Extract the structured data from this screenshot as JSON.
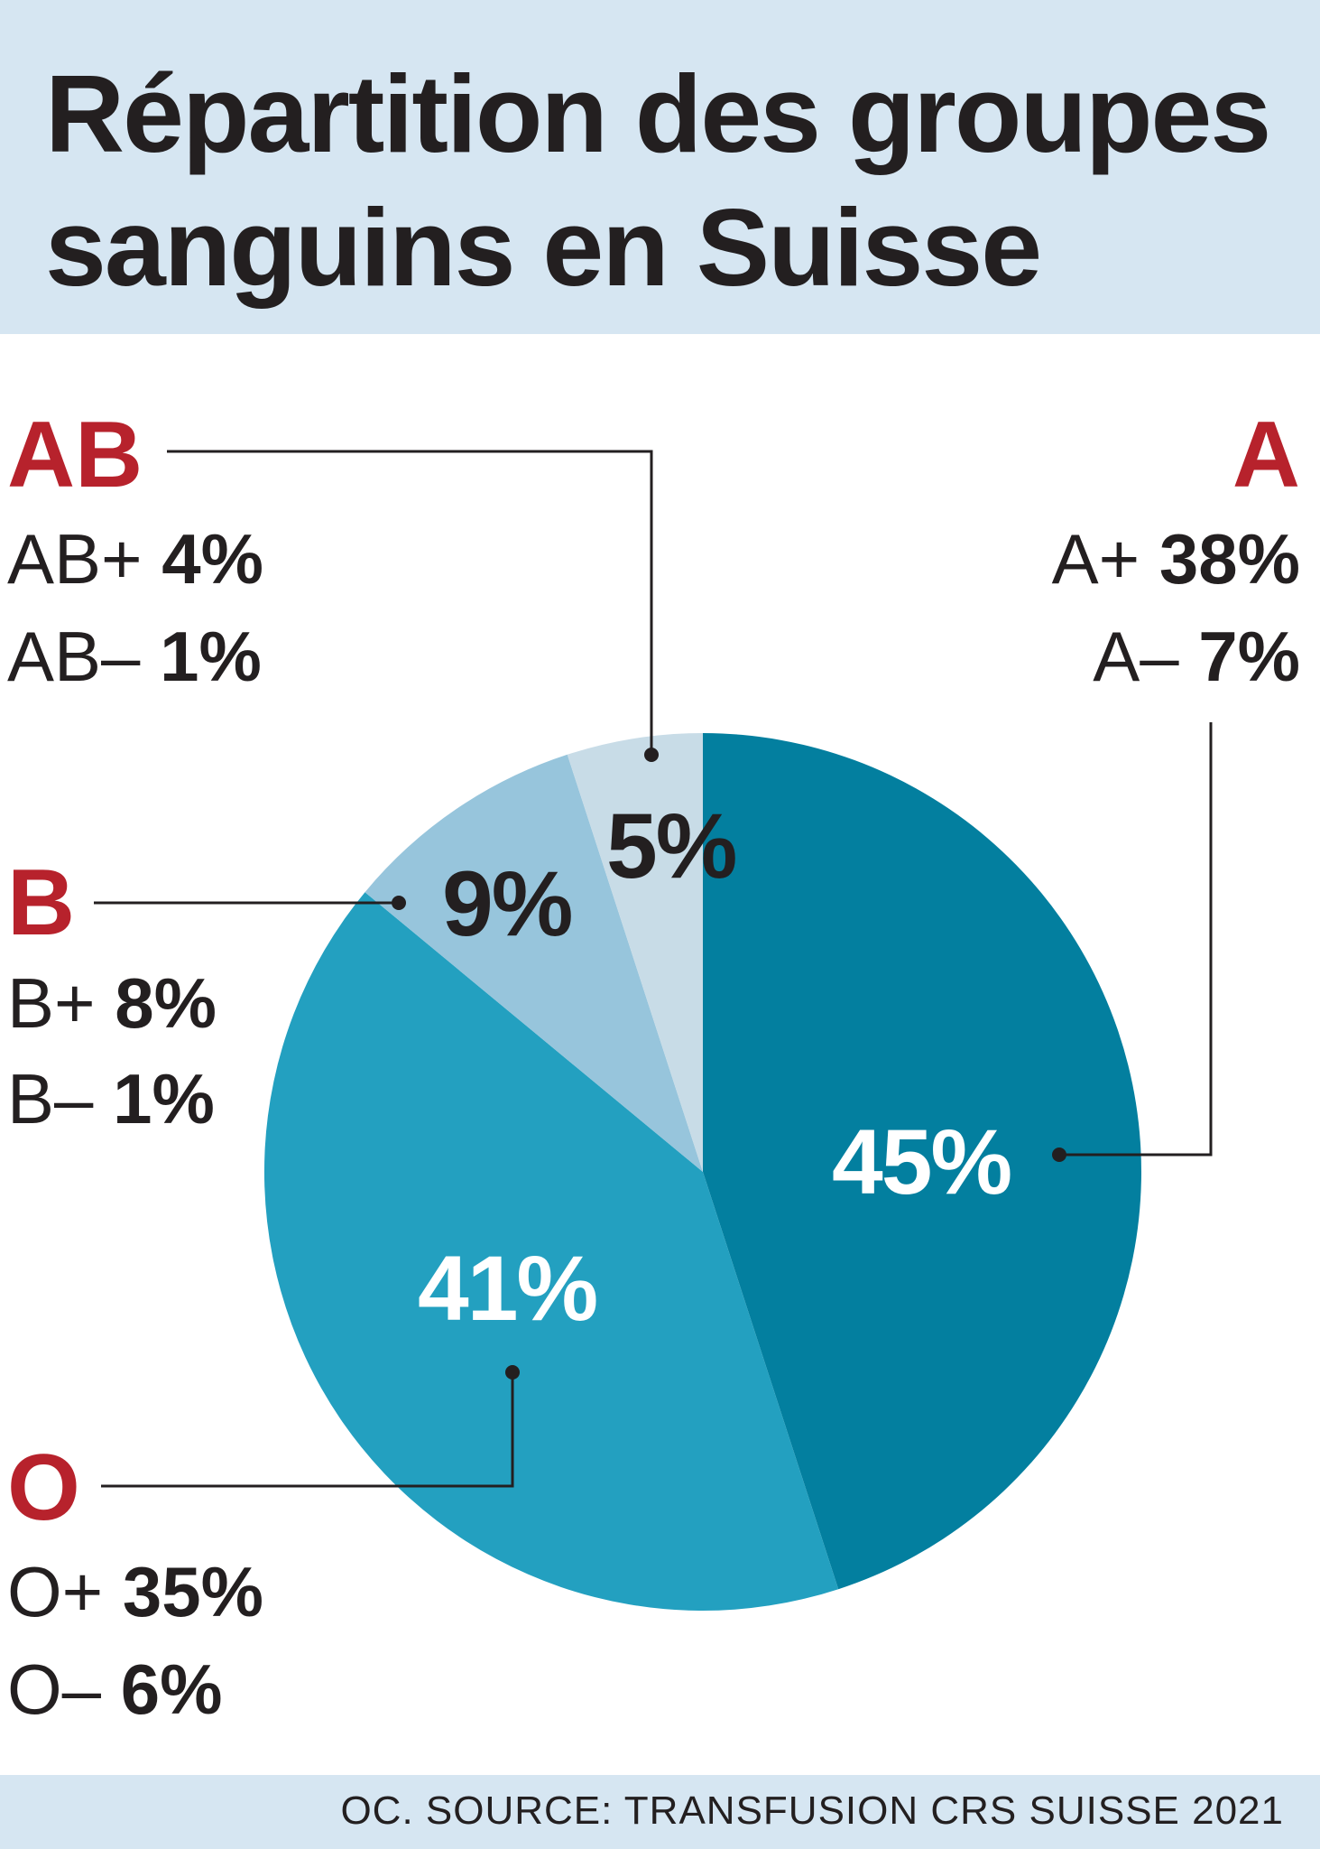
{
  "title_line1": "Répartition des groupes",
  "title_line2": "sanguins en Suisse",
  "source": "OC. SOURCE: TRANSFUSION CRS SUISSE 2021",
  "chart_data": {
    "type": "pie",
    "start_angle_deg": 0,
    "direction": "clockwise",
    "slices": [
      {
        "group": "A",
        "value": 45,
        "label": "45%",
        "color": "#037f9f",
        "label_color": "#ffffff",
        "subtypes": [
          {
            "name": "A+",
            "value": "38%"
          },
          {
            "name": "A–",
            "value": "7%"
          }
        ]
      },
      {
        "group": "O",
        "value": 41,
        "label": "41%",
        "color": "#23a0c0",
        "label_color": "#ffffff",
        "subtypes": [
          {
            "name": "O+",
            "value": "35%"
          },
          {
            "name": "O–",
            "value": "6%"
          }
        ]
      },
      {
        "group": "B",
        "value": 9,
        "label": "9%",
        "color": "#97c5dc",
        "label_color": "#231f20",
        "subtypes": [
          {
            "name": "B+",
            "value": "8%"
          },
          {
            "name": "B–",
            "value": "1%"
          }
        ]
      },
      {
        "group": "AB",
        "value": 5,
        "label": "5%",
        "color": "#c8dce7",
        "label_color": "#231f20",
        "subtypes": [
          {
            "name": "AB+",
            "value": "4%"
          },
          {
            "name": "AB–",
            "value": "1%"
          }
        ]
      }
    ],
    "legend_color": "#b7222c"
  }
}
